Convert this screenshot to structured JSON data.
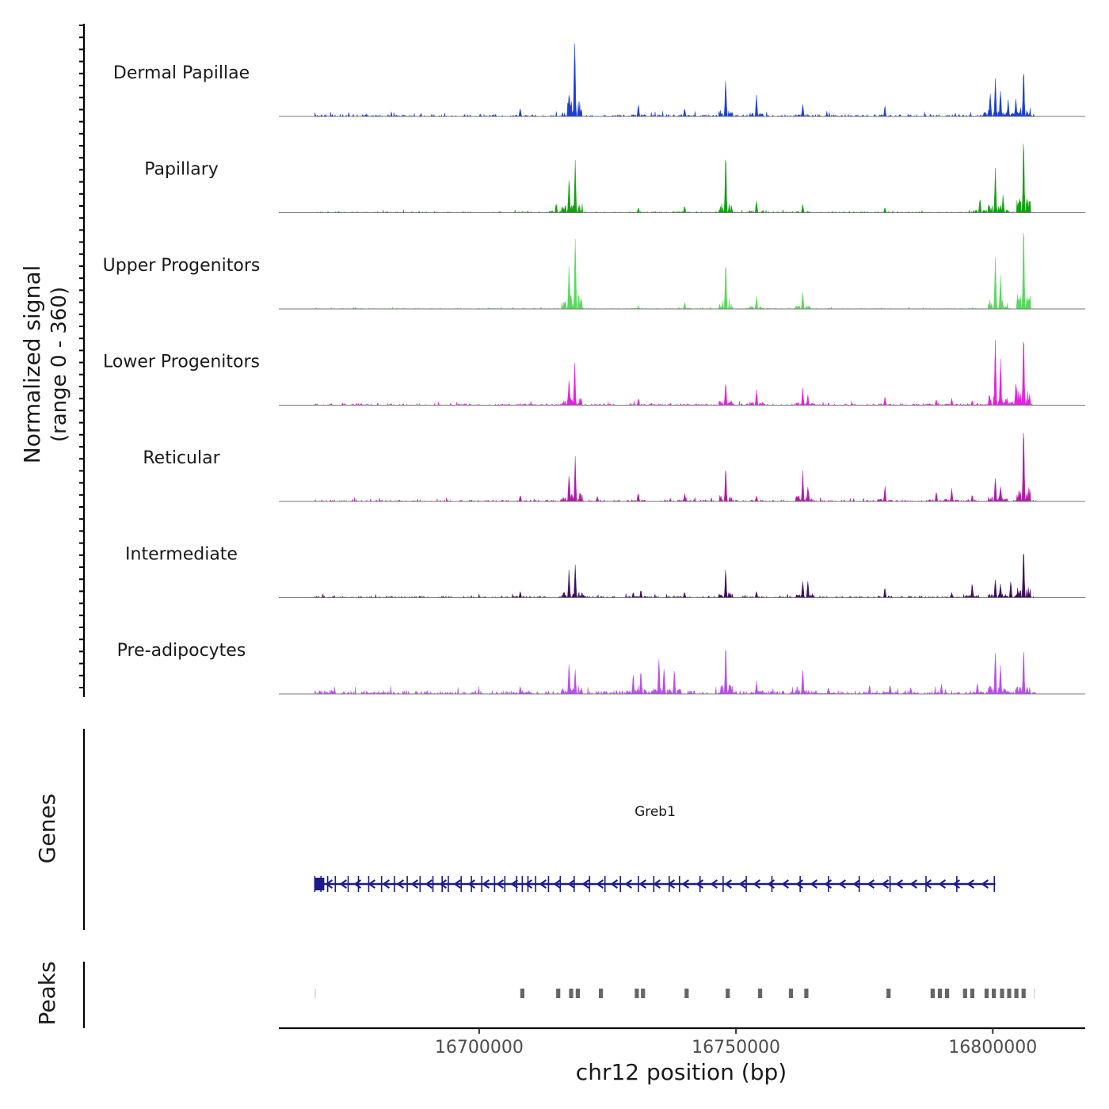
{
  "chart_data": {
    "type": "area",
    "title": "",
    "region": {
      "chrom": "chr12",
      "start": 16661000,
      "end": 16818000
    },
    "signal_ylabel": "Normalized signal",
    "signal_ylabel_range": "(range 0 - 360)",
    "signal_range": [
      0,
      360
    ],
    "xlabel": "chr12 position (bp)",
    "x_ticks": [
      "16700000",
      "16750000",
      "16800000"
    ],
    "x_tick_values": [
      16700000,
      16750000,
      16800000
    ],
    "tracks": [
      {
        "name": "Dermal Papillae",
        "color": "#1b3fd6",
        "seed": 11,
        "noise": 0.05,
        "peaks": [
          [
            16668000,
            0.05
          ],
          [
            16708000,
            0.1
          ],
          [
            16717500,
            0.3
          ],
          [
            16718600,
            0.95
          ],
          [
            16731000,
            0.15
          ],
          [
            16740000,
            0.1
          ],
          [
            16748000,
            0.45
          ],
          [
            16754000,
            0.25
          ],
          [
            16763000,
            0.15
          ],
          [
            16779000,
            0.12
          ],
          [
            16799500,
            0.28
          ],
          [
            16800500,
            0.45
          ],
          [
            16801500,
            0.35
          ],
          [
            16803000,
            0.2
          ],
          [
            16804500,
            0.22
          ],
          [
            16806000,
            0.55
          ]
        ]
      },
      {
        "name": "Papillary",
        "color": "#12a112",
        "seed": 23,
        "noise": 0.03,
        "peaks": [
          [
            16715000,
            0.12
          ],
          [
            16717500,
            0.45
          ],
          [
            16718700,
            0.6
          ],
          [
            16731000,
            0.06
          ],
          [
            16740000,
            0.08
          ],
          [
            16748000,
            0.7
          ],
          [
            16754000,
            0.15
          ],
          [
            16763000,
            0.1
          ],
          [
            16779000,
            0.06
          ],
          [
            16797500,
            0.18
          ],
          [
            16800500,
            0.55
          ],
          [
            16802000,
            0.2
          ],
          [
            16806000,
            0.9
          ]
        ]
      },
      {
        "name": "Upper Progenitors",
        "color": "#58d95c",
        "seed": 37,
        "noise": 0.02,
        "peaks": [
          [
            16717500,
            0.5
          ],
          [
            16718700,
            0.95
          ],
          [
            16731000,
            0.04
          ],
          [
            16740000,
            0.08
          ],
          [
            16748000,
            0.6
          ],
          [
            16754000,
            0.15
          ],
          [
            16763000,
            0.2
          ],
          [
            16800500,
            0.65
          ],
          [
            16801500,
            0.4
          ],
          [
            16806000,
            1.0
          ]
        ]
      },
      {
        "name": "Lower Progenitors",
        "color": "#e91ee3",
        "seed": 49,
        "noise": 0.04,
        "peaks": [
          [
            16717500,
            0.35
          ],
          [
            16718600,
            0.48
          ],
          [
            16731000,
            0.08
          ],
          [
            16748000,
            0.3
          ],
          [
            16754000,
            0.2
          ],
          [
            16763000,
            0.2
          ],
          [
            16764000,
            0.12
          ],
          [
            16779000,
            0.1
          ],
          [
            16789000,
            0.07
          ],
          [
            16792000,
            0.08
          ],
          [
            16796000,
            0.06
          ],
          [
            16800500,
            0.75
          ],
          [
            16801500,
            0.55
          ],
          [
            16804500,
            0.3
          ],
          [
            16806000,
            0.95
          ]
        ]
      },
      {
        "name": "Reticular",
        "color": "#b319a9",
        "seed": 61,
        "noise": 0.04,
        "peaks": [
          [
            16708000,
            0.08
          ],
          [
            16717500,
            0.35
          ],
          [
            16718700,
            0.55
          ],
          [
            16723000,
            0.06
          ],
          [
            16731000,
            0.1
          ],
          [
            16740000,
            0.1
          ],
          [
            16748000,
            0.4
          ],
          [
            16754000,
            0.07
          ],
          [
            16763000,
            0.35
          ],
          [
            16764000,
            0.18
          ],
          [
            16779000,
            0.18
          ],
          [
            16789000,
            0.12
          ],
          [
            16792000,
            0.15
          ],
          [
            16796000,
            0.08
          ],
          [
            16800500,
            0.32
          ],
          [
            16801500,
            0.2
          ],
          [
            16806000,
            0.95
          ]
        ]
      },
      {
        "name": "Intermediate",
        "color": "#3e0f5e",
        "seed": 73,
        "noise": 0.04,
        "peaks": [
          [
            16708000,
            0.08
          ],
          [
            16717500,
            0.33
          ],
          [
            16718700,
            0.42
          ],
          [
            16730000,
            0.07
          ],
          [
            16731500,
            0.1
          ],
          [
            16740000,
            0.07
          ],
          [
            16748000,
            0.35
          ],
          [
            16754000,
            0.08
          ],
          [
            16763000,
            0.2
          ],
          [
            16764000,
            0.22
          ],
          [
            16779000,
            0.13
          ],
          [
            16792000,
            0.06
          ],
          [
            16796000,
            0.18
          ],
          [
            16800500,
            0.25
          ],
          [
            16801500,
            0.18
          ],
          [
            16803500,
            0.22
          ],
          [
            16806000,
            0.65
          ]
        ]
      },
      {
        "name": "Pre-adipocytes",
        "color": "#b74ef0",
        "seed": 89,
        "noise": 0.08,
        "peaks": [
          [
            16708000,
            0.1
          ],
          [
            16717500,
            0.4
          ],
          [
            16718700,
            0.3
          ],
          [
            16730000,
            0.25
          ],
          [
            16731500,
            0.3
          ],
          [
            16735000,
            0.45
          ],
          [
            16736000,
            0.35
          ],
          [
            16738000,
            0.3
          ],
          [
            16748000,
            0.6
          ],
          [
            16754000,
            0.15
          ],
          [
            16763000,
            0.3
          ],
          [
            16768000,
            0.08
          ],
          [
            16776000,
            0.1
          ],
          [
            16780000,
            0.12
          ],
          [
            16784000,
            0.08
          ],
          [
            16790000,
            0.12
          ],
          [
            16797000,
            0.15
          ],
          [
            16800500,
            0.55
          ],
          [
            16801500,
            0.35
          ],
          [
            16806000,
            0.55
          ]
        ]
      }
    ],
    "genes_label": "Genes",
    "gene": {
      "name": "Greb1",
      "start": 16668000,
      "end": 16800500,
      "strand": "-",
      "color": "#1a1a8c",
      "exons": [
        16668000,
        16669200,
        16670500,
        16672000,
        16674500,
        16676500,
        16678500,
        16681000,
        16683500,
        16686000,
        16688500,
        16691000,
        16692800,
        16694000,
        16696500,
        16698500,
        16700500,
        16703000,
        16705000,
        16707300,
        16708400,
        16709500,
        16711000,
        16713500,
        16715800,
        16718500,
        16721500,
        16724500,
        16727500,
        16731000,
        16734000,
        16737000,
        16739000,
        16743000,
        16747500,
        16752000,
        16757000,
        16762500,
        16768000,
        16774000,
        16780000,
        16787000,
        16793000,
        16800300
      ]
    },
    "peaks_label": "Peaks",
    "peaks_color": "#666666",
    "peaks": [
      [
        16668000,
        16668100
      ],
      [
        16708000,
        16708800
      ],
      [
        16715000,
        16715800
      ],
      [
        16717500,
        16718300
      ],
      [
        16718800,
        16719600
      ],
      [
        16723300,
        16724100
      ],
      [
        16730300,
        16731100
      ],
      [
        16731500,
        16732300
      ],
      [
        16740000,
        16740800
      ],
      [
        16748000,
        16748800
      ],
      [
        16754300,
        16755100
      ],
      [
        16760300,
        16761100
      ],
      [
        16763300,
        16764100
      ],
      [
        16779300,
        16780100
      ],
      [
        16787900,
        16788700
      ],
      [
        16789300,
        16790100
      ],
      [
        16790700,
        16791500
      ],
      [
        16794200,
        16795000
      ],
      [
        16795600,
        16796400
      ],
      [
        16798400,
        16799200
      ],
      [
        16799800,
        16800600
      ],
      [
        16801400,
        16802200
      ],
      [
        16802800,
        16803600
      ],
      [
        16804200,
        16805000
      ],
      [
        16805600,
        16806400
      ],
      [
        16808000,
        16808100
      ]
    ]
  }
}
